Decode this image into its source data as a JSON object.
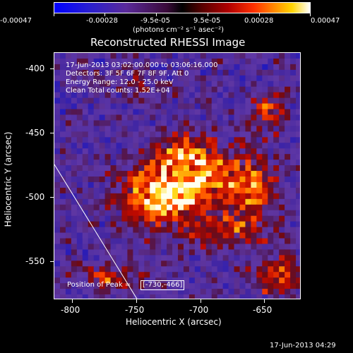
{
  "colorbar": {
    "tick_labels": [
      "-0.00047",
      "-0.00028",
      "-9.5e-05",
      "9.5e-05",
      "0.00028",
      "0.00047"
    ],
    "units": "(photons cm⁻² s⁻¹ asec⁻²)"
  },
  "title": "Reconstructed RHESSI Image",
  "info": {
    "time_range": "17-Jun-2013 03:02:00.000 to 03:06:16.000",
    "detectors": "Detectors: 3F 5F 6F 7F 8F 9F, Att 0",
    "energy": "Energy Range: 12.0 - 25.0 keV",
    "clean": "Clean    Total counts: 1.52E+04"
  },
  "peak": {
    "label": "Position of Peak =",
    "value": "[-730,-466]"
  },
  "axes": {
    "xlabel": "Heliocentric X (arcsec)",
    "ylabel": "Heliocentric Y (arcsec)",
    "xticks": [
      "-800",
      "-750",
      "-700",
      "-650"
    ],
    "yticks": [
      "-400",
      "-450",
      "-500",
      "-550"
    ]
  },
  "footer": {
    "timestamp": "17-Jun-2013 04:29"
  }
}
